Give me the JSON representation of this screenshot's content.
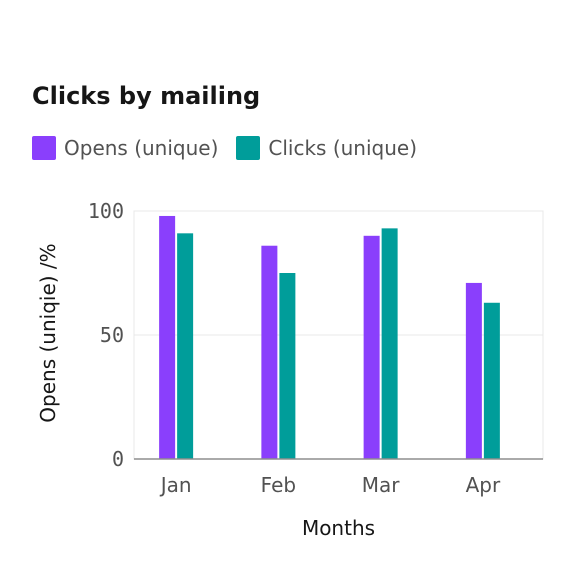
{
  "chart_data": {
    "type": "bar",
    "title": "Clicks by mailing",
    "categories": [
      "Jan",
      "Feb",
      "Mar",
      "Apr"
    ],
    "series": [
      {
        "name": "Opens (unique)",
        "color": "#8a3ffc",
        "values": [
          98,
          86,
          90,
          71
        ]
      },
      {
        "name": "Clicks (unique)",
        "color": "#009d9a",
        "values": [
          91,
          75,
          93,
          63
        ]
      }
    ],
    "xlabel": "Months",
    "ylabel": "Opens (uniqie) /%",
    "ylim": [
      0,
      100
    ],
    "yticks": [
      "0",
      "50",
      "100"
    ],
    "grid": true,
    "legend": "top-left"
  }
}
